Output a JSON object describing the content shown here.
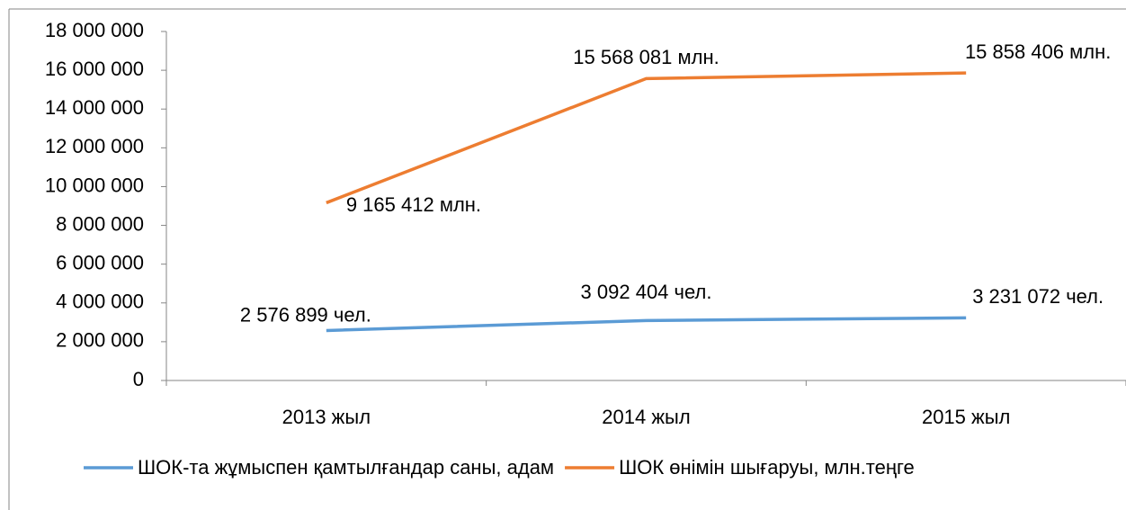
{
  "chart_data": {
    "type": "line",
    "categories": [
      "2013 жыл",
      "2014 жыл",
      "2015 жыл"
    ],
    "series": [
      {
        "name": "ШОК-та жұмыспен қамтылғандар саны, адам",
        "color": "#5b9bd5",
        "values": [
          2576899,
          3092404,
          3231072
        ],
        "value_labels": [
          "2 576 899 чел.",
          "3 092 404 чел.",
          "3 231 072 чел."
        ]
      },
      {
        "name": "ШОК өнімін шығаруы, млн.теңге",
        "color": "#ed7d31",
        "values": [
          9165412,
          15568081,
          15858406
        ],
        "value_labels": [
          "9 165 412 млн.",
          "15 568 081 млн.",
          "15 858 406 млн."
        ]
      }
    ],
    "ylim": [
      0,
      18000000
    ],
    "yticks": [
      0,
      {
        "value": 2000000,
        "label": "2 000 000"
      },
      {
        "value": 4000000,
        "label": "4 000 000"
      },
      {
        "value": 6000000,
        "label": "6 000 000"
      },
      {
        "value": 8000000,
        "label": "8 000 000"
      },
      {
        "value": 10000000,
        "label": "10 000 000"
      },
      {
        "value": 12000000,
        "label": "12 000 000"
      },
      {
        "value": 14000000,
        "label": "14 000 000"
      },
      {
        "value": 16000000,
        "label": "16 000 000"
      },
      {
        "value": 18000000,
        "label": "18 000 000"
      }
    ],
    "legend": "bottom",
    "grid": false
  }
}
